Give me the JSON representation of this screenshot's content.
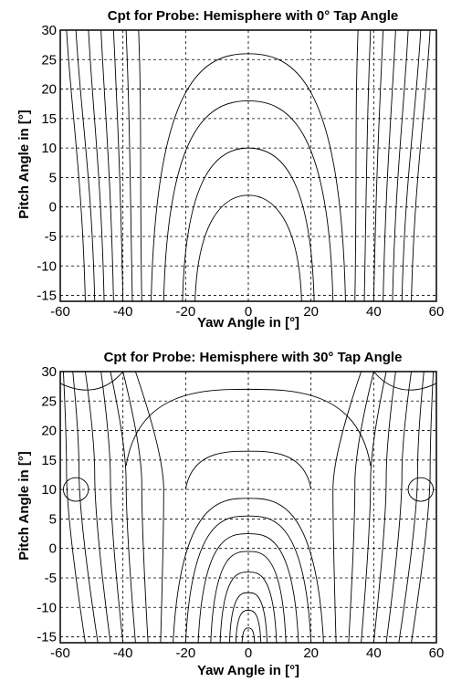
{
  "chart_data": [
    {
      "type": "contour",
      "title": "Cpt for Probe: Hemisphere with 0° Tap Angle",
      "xlabel": "Yaw Angle in [°]",
      "ylabel": "Pitch Angle in [°]",
      "xlim": [
        -60,
        60
      ],
      "ylim": [
        -16,
        30
      ],
      "xticks": [
        "-60",
        "-40",
        "-20",
        "0",
        "20",
        "40",
        "60"
      ],
      "yticks": [
        "30",
        "25",
        "20",
        "15",
        "10",
        "5",
        "0",
        "-5",
        "-10",
        "-15"
      ],
      "grid": true,
      "contour_style": "thin black lines, no level labels",
      "contours": [
        {
          "kind": "dome",
          "apex": [
            0,
            26
          ],
          "foot": [
            -31,
            31
          ]
        },
        {
          "kind": "dome",
          "apex": [
            0,
            18
          ],
          "foot": [
            -27,
            27
          ]
        },
        {
          "kind": "dome",
          "apex": [
            0,
            10
          ],
          "foot": [
            -21,
            21
          ]
        },
        {
          "kind": "dome",
          "apex": [
            0,
            2
          ],
          "foot": [
            -17,
            17
          ]
        },
        {
          "kind": "side",
          "x_top": [
            -58,
            58
          ],
          "x_bottom": [
            -52,
            52
          ]
        },
        {
          "kind": "side",
          "x_top": [
            -55,
            55
          ],
          "x_bottom": [
            -49,
            49
          ]
        },
        {
          "kind": "side",
          "x_top": [
            -51,
            51
          ],
          "x_bottom": [
            -46,
            46
          ]
        },
        {
          "kind": "side",
          "x_top": [
            -47,
            47
          ],
          "x_bottom": [
            -43,
            43
          ]
        },
        {
          "kind": "side",
          "x_top": [
            -43,
            43
          ],
          "x_bottom": [
            -40,
            40
          ]
        },
        {
          "kind": "side",
          "x_top": [
            -39,
            39
          ],
          "x_bottom": [
            -37,
            37
          ]
        },
        {
          "kind": "side",
          "x_top": [
            -35,
            35
          ],
          "x_bottom": [
            -34,
            34
          ]
        }
      ]
    },
    {
      "type": "contour",
      "title": "Cpt for Probe: Hemisphere with 30° Tap Angle",
      "xlabel": "Yaw Angle in [°]",
      "ylabel": "Pitch Angle in [°]",
      "xlim": [
        -60,
        60
      ],
      "ylim": [
        -16,
        30
      ],
      "xticks": [
        "-60",
        "-40",
        "-20",
        "0",
        "20",
        "40",
        "60"
      ],
      "yticks": [
        "30",
        "25",
        "20",
        "15",
        "10",
        "5",
        "0",
        "-5",
        "-10",
        "-15"
      ],
      "grid": true,
      "contour_style": "thin black lines, no level labels",
      "contours": [
        {
          "kind": "arch",
          "apex": [
            0,
            8.5
          ],
          "foot": [
            -24,
            24
          ]
        },
        {
          "kind": "arch",
          "apex": [
            0,
            5.5
          ],
          "foot": [
            -20,
            20
          ]
        },
        {
          "kind": "arch",
          "apex": [
            0,
            2.5
          ],
          "foot": [
            -16,
            16
          ]
        },
        {
          "kind": "arch",
          "apex": [
            0,
            -0.5
          ],
          "foot": [
            -12,
            12
          ]
        },
        {
          "kind": "arch",
          "apex": [
            0,
            -4
          ],
          "foot": [
            -9,
            9
          ]
        },
        {
          "kind": "arch",
          "apex": [
            0,
            -7.5
          ],
          "foot": [
            -6,
            6
          ]
        },
        {
          "kind": "arch",
          "apex": [
            0,
            -10.5
          ],
          "foot": [
            -4,
            4
          ]
        },
        {
          "kind": "arch",
          "apex": [
            0,
            -13.5
          ],
          "foot": [
            -2,
            2
          ]
        },
        {
          "kind": "vee",
          "x_top": [
            -36,
            36
          ],
          "x_mid": [
            -27,
            27
          ],
          "x_bottom": [
            -28,
            28
          ],
          "y_mid": 10
        },
        {
          "kind": "vee",
          "x_top": [
            -40,
            40
          ],
          "x_mid": [
            -34,
            34
          ],
          "x_bottom": [
            -32,
            32
          ],
          "y_mid": 11
        },
        {
          "kind": "vee",
          "x_top": [
            -44,
            44
          ],
          "x_mid": [
            -39,
            39
          ],
          "x_bottom": [
            -36,
            36
          ],
          "y_mid": 11.5
        },
        {
          "kind": "vee",
          "x_top": [
            -47,
            47
          ],
          "x_mid": [
            -44,
            44
          ],
          "x_bottom": [
            -40,
            40
          ],
          "y_mid": 12
        },
        {
          "kind": "vee",
          "x_top": [
            -52,
            52
          ],
          "x_mid": [
            -49,
            49
          ],
          "x_bottom": [
            -44,
            44
          ],
          "y_mid": 12.5
        },
        {
          "kind": "vee",
          "x_top": [
            -56,
            56
          ],
          "x_mid": [
            -54,
            54
          ],
          "x_bottom": [
            -48,
            48
          ],
          "y_mid": 13
        },
        {
          "kind": "vee",
          "x_top": [
            -59,
            59
          ],
          "x_mid": [
            -58,
            58
          ],
          "x_bottom": [
            -52,
            52
          ],
          "y_mid": 13
        },
        {
          "kind": "loop",
          "center": [
            -55,
            10
          ],
          "radius": [
            4,
            2
          ]
        },
        {
          "kind": "loop",
          "center": [
            55,
            10
          ],
          "radius": [
            4,
            2
          ]
        },
        {
          "kind": "arch",
          "apex": [
            0,
            27
          ],
          "foot": [
            -39,
            39
          ],
          "base_y": 14
        },
        {
          "kind": "arch",
          "apex": [
            0,
            16.5
          ],
          "foot": [
            -20,
            20
          ],
          "base_y": 10
        },
        {
          "kind": "hook",
          "from": [
            -60,
            28
          ],
          "via": [
            -48,
            25
          ],
          "to": [
            -40,
            30
          ]
        },
        {
          "kind": "hook",
          "from": [
            60,
            28
          ],
          "via": [
            48,
            25
          ],
          "to": [
            40,
            30
          ]
        }
      ]
    }
  ]
}
